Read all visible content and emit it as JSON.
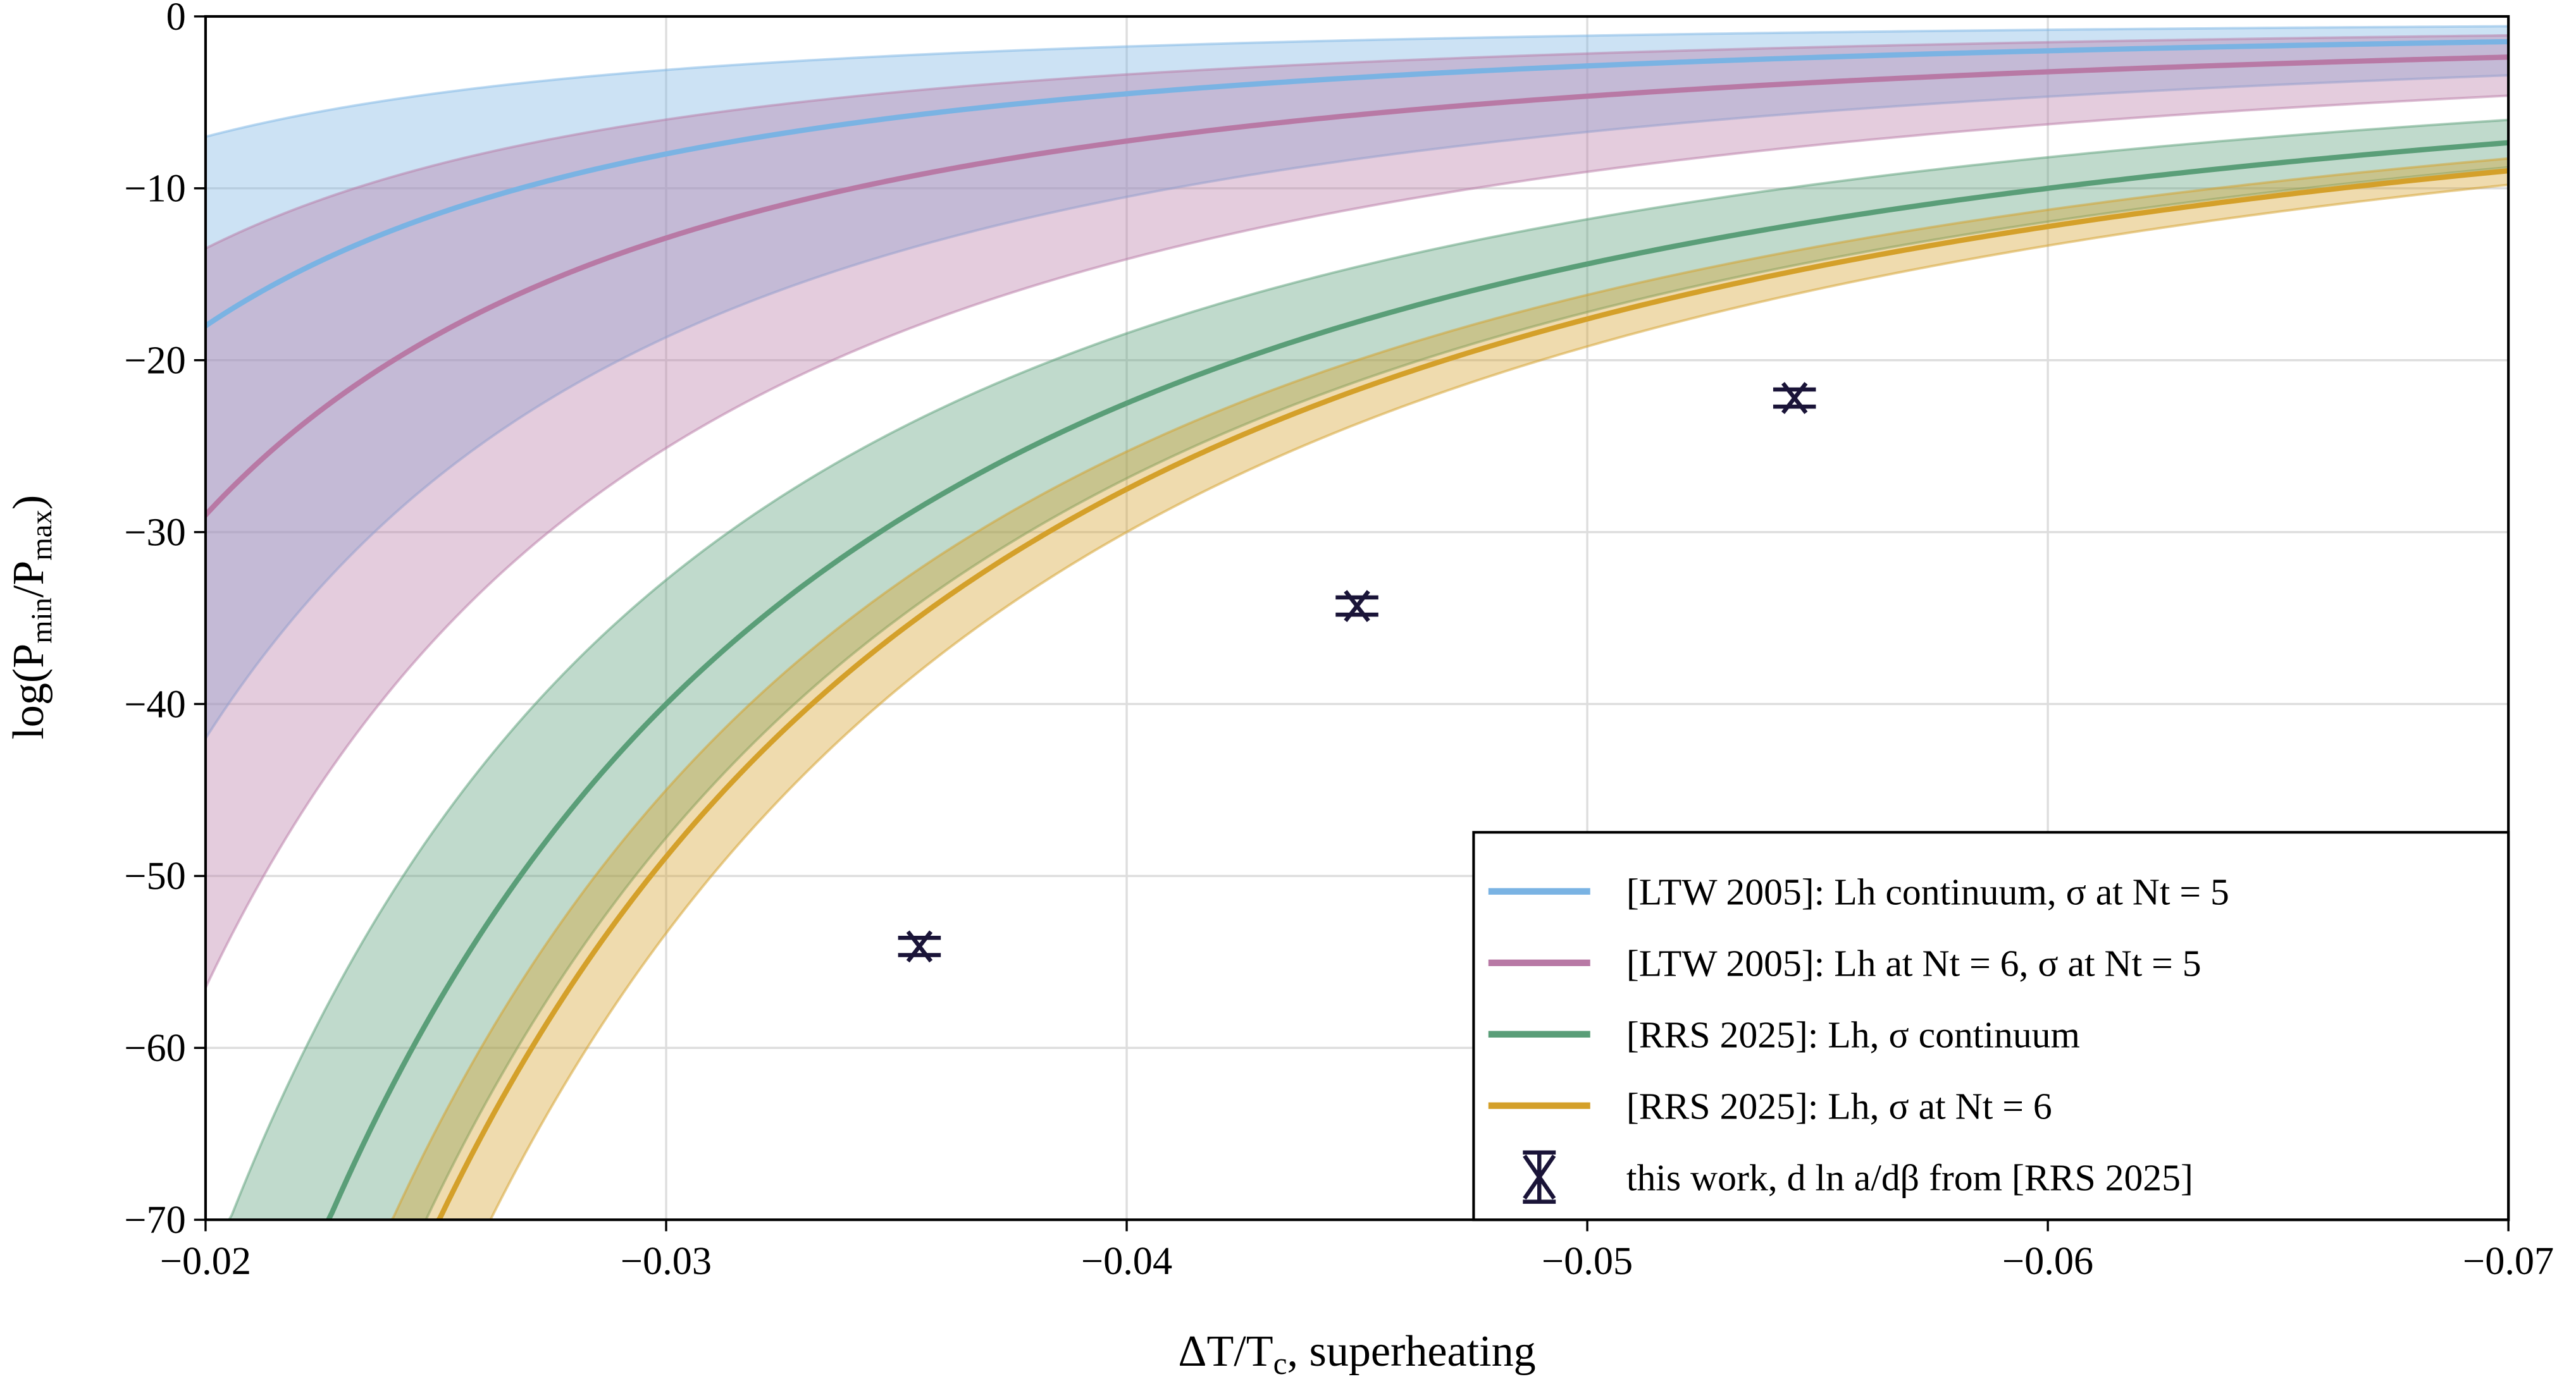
{
  "chart_data": {
    "type": "line",
    "title": "",
    "xlabel": "ΔT/Tc, superheating",
    "xlabel_parts": {
      "main": "ΔT/T",
      "sub": "c",
      "rest": ", superheating"
    },
    "ylabel": "log(Pmin/Pmax)",
    "ylabel_parts": {
      "pre": "log(P",
      "sub1": "min",
      "mid": "/P",
      "sub2": "max",
      "post": ")"
    },
    "xlim": [
      -0.02,
      -0.07
    ],
    "ylim": [
      -70,
      0
    ],
    "xticks": [
      "−0.02",
      "−0.03",
      "−0.04",
      "−0.05",
      "−0.06",
      "−0.07"
    ],
    "xtick_values": [
      -0.02,
      -0.03,
      -0.04,
      -0.05,
      -0.06,
      -0.07
    ],
    "yticks": [
      "0",
      "−10",
      "−20",
      "−30",
      "−40",
      "−50",
      "−60",
      "−70"
    ],
    "ytick_values": [
      0,
      -10,
      -20,
      -30,
      -40,
      -50,
      -60,
      -70
    ],
    "grid": true,
    "legend_position": "lower-right",
    "model": "y = -A / x^2",
    "series": [
      {
        "name": "[LTW 2005]: Lh continuum, σ at Nt = 5",
        "color": "#7ab3e3",
        "A": 0.0072,
        "A_band": [
          0.0028,
          0.0168
        ]
      },
      {
        "name": "[LTW 2005]: Lh at Nt = 6, σ at Nt = 5",
        "color": "#b879a5",
        "A": 0.0116,
        "A_band": [
          0.0054,
          0.0226
        ]
      },
      {
        "name": "[RRS 2025]: Lh, σ continuum",
        "color": "#5a9e78",
        "A": 0.036,
        "A_band": [
          0.0295,
          0.043
        ]
      },
      {
        "name": "[RRS 2025]: Lh, σ at Nt = 6",
        "color": "#d4a02a",
        "A": 0.044,
        "A_band": [
          0.0405,
          0.048
        ]
      }
    ],
    "points": {
      "name": "this work, d ln a/dβ from [RRS 2025]",
      "color": "#1a1438",
      "x": [
        -0.0355,
        -0.045,
        -0.0545
      ],
      "y": [
        -54.1,
        -34.3,
        -22.2
      ],
      "yerr": [
        0.5,
        0.5,
        0.5
      ]
    }
  }
}
